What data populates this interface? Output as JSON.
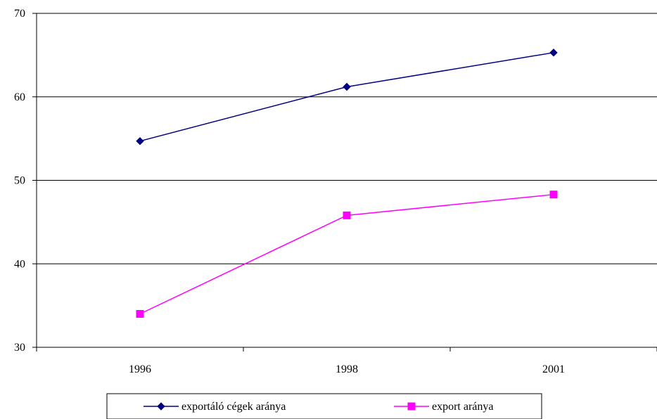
{
  "chart_data": {
    "type": "line",
    "title": "",
    "xlabel": "",
    "ylabel": "",
    "categories": [
      "1996",
      "1998",
      "2001"
    ],
    "ylim": [
      30,
      70
    ],
    "yticks": [
      30,
      40,
      50,
      60,
      70
    ],
    "grid": "horizontal",
    "legend_position": "bottom",
    "series": [
      {
        "name": "exportáló cégek aránya",
        "values": [
          54.7,
          61.2,
          65.3
        ],
        "color": "#000080",
        "marker": "diamond"
      },
      {
        "name": "export aránya",
        "values": [
          34.0,
          45.8,
          48.3
        ],
        "color": "#ff00ff",
        "marker": "square"
      }
    ]
  }
}
